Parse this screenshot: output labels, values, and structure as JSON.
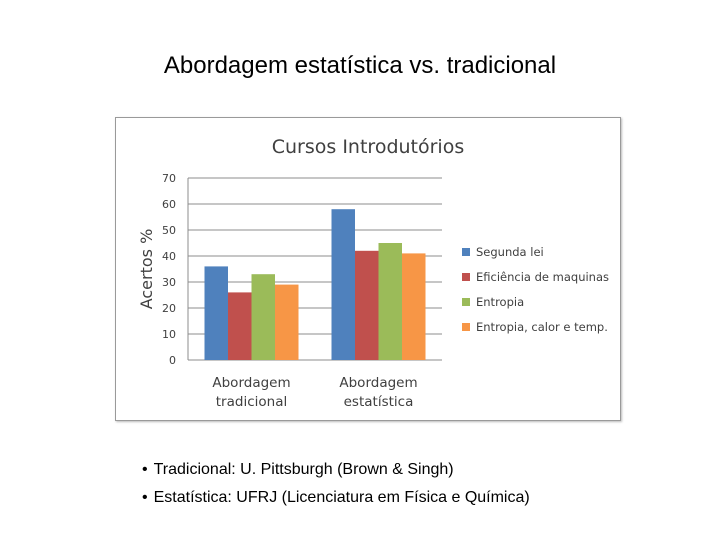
{
  "slide": {
    "title": "Abordagem estatística vs. tradicional",
    "bullets": [
      "Tradicional:  U. Pittsburgh (Brown & Singh)",
      "Estatística: UFRJ (Licenciatura em Física e Química)"
    ]
  },
  "chart_data": {
    "type": "bar",
    "title": "Cursos Introdutórios",
    "xlabel": "",
    "ylabel": "Acertos %",
    "ylim": [
      0,
      70
    ],
    "yticks": [
      0,
      10,
      20,
      30,
      40,
      50,
      60,
      70
    ],
    "grid": true,
    "legend_position": "right",
    "categories": [
      "Abordagem tradicional",
      "Abordagem estatística"
    ],
    "category_lines": [
      [
        "Abordagem",
        "tradicional"
      ],
      [
        "Abordagem",
        "estatística"
      ]
    ],
    "series": [
      {
        "name": "Segunda lei",
        "color": "#4F81BD",
        "values": [
          36,
          58
        ]
      },
      {
        "name": "Eficiência de maquinas",
        "color": "#C0504D",
        "values": [
          26,
          42
        ]
      },
      {
        "name": "Entropia",
        "color": "#9BBB59",
        "values": [
          33,
          45
        ]
      },
      {
        "name": "Entropia, calor e temp.",
        "color": "#F79646",
        "values": [
          29,
          41
        ]
      }
    ]
  }
}
